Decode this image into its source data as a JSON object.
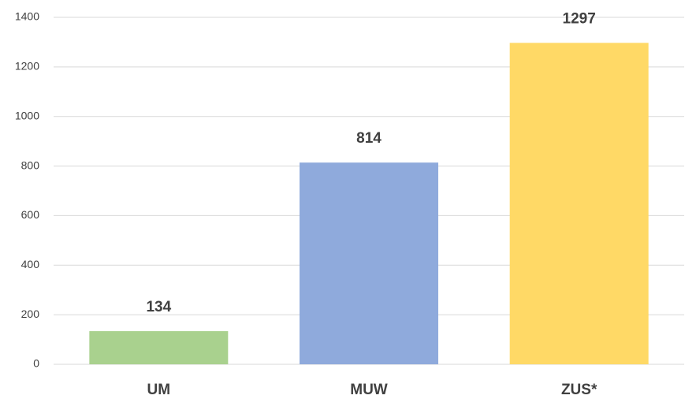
{
  "chart_data": {
    "type": "bar",
    "categories": [
      "UM",
      "MUW",
      "ZUS*"
    ],
    "values": [
      134,
      814,
      1297
    ],
    "colors": [
      "#a9d18e",
      "#8faadc",
      "#ffd966"
    ],
    "ylim": [
      0,
      1400
    ],
    "yticks": [
      0,
      200,
      400,
      600,
      800,
      1000,
      1200,
      1400
    ],
    "grid": true
  }
}
